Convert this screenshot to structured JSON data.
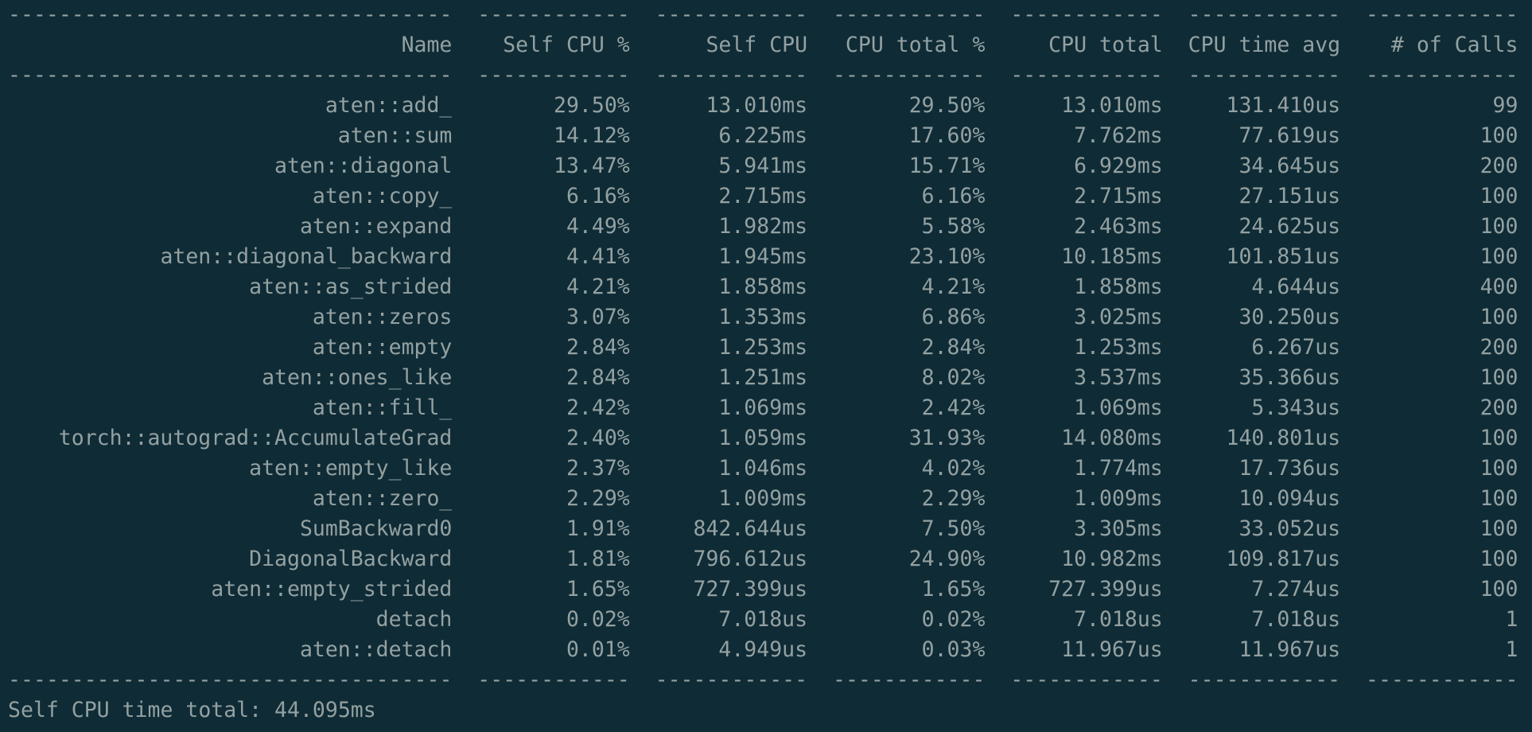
{
  "table": {
    "rule": [
      "-----------------------------------",
      "------------",
      "------------",
      "------------",
      "------------",
      "------------",
      "------------"
    ],
    "header": [
      "Name",
      "Self CPU %",
      "Self CPU",
      "CPU total %",
      "CPU total",
      "CPU time avg",
      "# of Calls"
    ],
    "rows": [
      [
        "aten::add_",
        "29.50%",
        "13.010ms",
        "29.50%",
        "13.010ms",
        "131.410us",
        "99"
      ],
      [
        "aten::sum",
        "14.12%",
        "6.225ms",
        "17.60%",
        "7.762ms",
        "77.619us",
        "100"
      ],
      [
        "aten::diagonal",
        "13.47%",
        "5.941ms",
        "15.71%",
        "6.929ms",
        "34.645us",
        "200"
      ],
      [
        "aten::copy_",
        "6.16%",
        "2.715ms",
        "6.16%",
        "2.715ms",
        "27.151us",
        "100"
      ],
      [
        "aten::expand",
        "4.49%",
        "1.982ms",
        "5.58%",
        "2.463ms",
        "24.625us",
        "100"
      ],
      [
        "aten::diagonal_backward",
        "4.41%",
        "1.945ms",
        "23.10%",
        "10.185ms",
        "101.851us",
        "100"
      ],
      [
        "aten::as_strided",
        "4.21%",
        "1.858ms",
        "4.21%",
        "1.858ms",
        "4.644us",
        "400"
      ],
      [
        "aten::zeros",
        "3.07%",
        "1.353ms",
        "6.86%",
        "3.025ms",
        "30.250us",
        "100"
      ],
      [
        "aten::empty",
        "2.84%",
        "1.253ms",
        "2.84%",
        "1.253ms",
        "6.267us",
        "200"
      ],
      [
        "aten::ones_like",
        "2.84%",
        "1.251ms",
        "8.02%",
        "3.537ms",
        "35.366us",
        "100"
      ],
      [
        "aten::fill_",
        "2.42%",
        "1.069ms",
        "2.42%",
        "1.069ms",
        "5.343us",
        "200"
      ],
      [
        "torch::autograd::AccumulateGrad",
        "2.40%",
        "1.059ms",
        "31.93%",
        "14.080ms",
        "140.801us",
        "100"
      ],
      [
        "aten::empty_like",
        "2.37%",
        "1.046ms",
        "4.02%",
        "1.774ms",
        "17.736us",
        "100"
      ],
      [
        "aten::zero_",
        "2.29%",
        "1.009ms",
        "2.29%",
        "1.009ms",
        "10.094us",
        "100"
      ],
      [
        "SumBackward0",
        "1.91%",
        "842.644us",
        "7.50%",
        "3.305ms",
        "33.052us",
        "100"
      ],
      [
        "DiagonalBackward",
        "1.81%",
        "796.612us",
        "24.90%",
        "10.982ms",
        "109.817us",
        "100"
      ],
      [
        "aten::empty_strided",
        "1.65%",
        "727.399us",
        "1.65%",
        "727.399us",
        "7.274us",
        "100"
      ],
      [
        "detach",
        "0.02%",
        "7.018us",
        "0.02%",
        "7.018us",
        "7.018us",
        "1"
      ],
      [
        "aten::detach",
        "0.01%",
        "4.949us",
        "0.03%",
        "11.967us",
        "11.967us",
        "1"
      ]
    ],
    "footer": "Self CPU time total: 44.095ms"
  }
}
